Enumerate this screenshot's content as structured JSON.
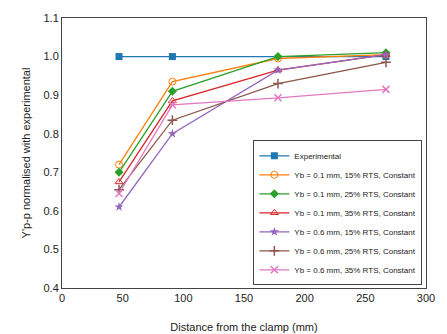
{
  "chart_data": {
    "type": "line",
    "xlabel": "Distance from the clamp (mm)",
    "ylabel": "Y'p-p normalised with experimental",
    "series": [
      {
        "name": "Experimental",
        "x": [
          47,
          91,
          267
        ],
        "values": [
          1.0,
          1.0,
          1.0
        ],
        "marker": "square"
      },
      {
        "name": "Yb = 0.1 mm, 15% RTS, Constant",
        "x": [
          47,
          91,
          178,
          267
        ],
        "values": [
          0.72,
          0.935,
          0.995,
          1.005
        ],
        "marker": "circle-open"
      },
      {
        "name": "Yb = 0.1 mm, 25% RTS, Constant",
        "x": [
          47,
          91,
          178,
          267
        ],
        "values": [
          0.7,
          0.91,
          1.0,
          1.01
        ],
        "marker": "diamond"
      },
      {
        "name": "Yb = 0.1 mm, 35% RTS, Constant",
        "x": [
          47,
          91,
          178,
          267
        ],
        "values": [
          0.675,
          0.885,
          0.965,
          1.005
        ],
        "marker": "triangle-up-open"
      },
      {
        "name": "Yb = 0.6 mm, 15% RTS, Constant",
        "x": [
          47,
          91,
          178,
          267
        ],
        "values": [
          0.61,
          0.8,
          0.965,
          1.005
        ],
        "marker": "star"
      },
      {
        "name": "Yb = 0.6 mm, 25% RTS, Constant",
        "x": [
          47,
          91,
          178,
          267
        ],
        "values": [
          0.655,
          0.835,
          0.93,
          0.985
        ],
        "marker": "cross-thin-open"
      },
      {
        "name": "Yb = 0.6 mm, 35% RTS, Constant",
        "x": [
          47,
          91,
          178,
          267
        ],
        "values": [
          0.645,
          0.875,
          0.893,
          0.915
        ],
        "marker": "x-thin-open"
      }
    ],
    "xlim": [
      0,
      300
    ],
    "ylim": [
      0.4,
      1.1
    ],
    "xticks": [
      0,
      50,
      100,
      150,
      200,
      250,
      300
    ],
    "yticks": [
      0.4,
      0.5,
      0.6,
      0.7,
      0.8,
      0.9,
      {
        "value": 1.0,
        "label": "1.0"
      },
      1.1
    ],
    "grid": false,
    "legend": "lower right"
  }
}
